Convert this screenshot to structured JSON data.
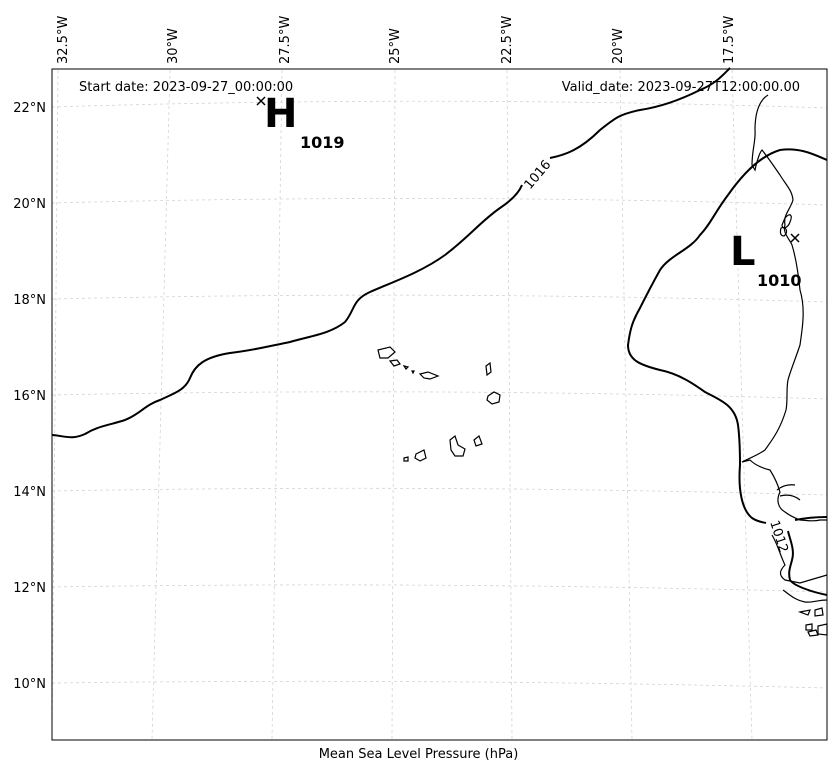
{
  "header": {
    "start_date": "Start date: 2023-09-27_00:00:00",
    "valid_date": "Valid_date: 2023-09-27T12:00:00.00"
  },
  "xlabel": "Mean Sea Level Pressure (hPa)",
  "lon_labels": [
    "32.5°W",
    "30°W",
    "27.5°W",
    "25°W",
    "22.5°W",
    "20°W",
    "17.5°W"
  ],
  "lat_labels": [
    "22°N",
    "20°N",
    "18°N",
    "16°N",
    "14°N",
    "12°N",
    "10°N"
  ],
  "centers": [
    {
      "letter": "H",
      "value": "1019"
    },
    {
      "letter": "L",
      "value": "1010"
    }
  ],
  "contours": [
    {
      "value": "1016",
      "label": "1016"
    },
    {
      "value": "1012",
      "label": "1012"
    }
  ],
  "colors": {
    "contour": "#000000",
    "coast": "#000000",
    "grid": "#d0d0d0",
    "background": "#ffffff"
  }
}
